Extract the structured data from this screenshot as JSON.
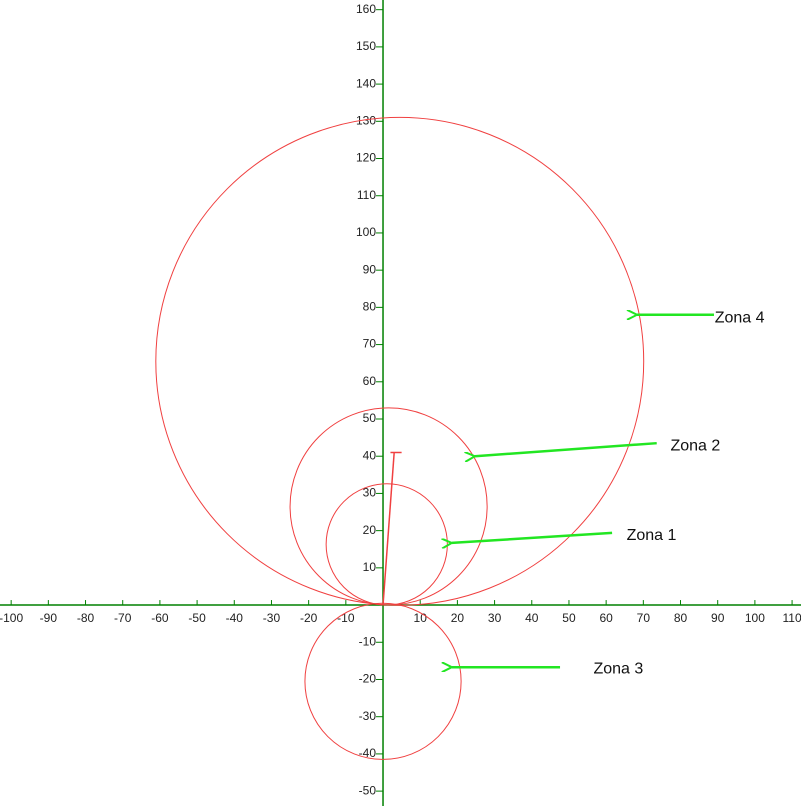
{
  "chart_data": {
    "type": "circle",
    "xlim": [
      -103,
      112.4
    ],
    "ylim": [
      -54,
      162.6
    ],
    "xticks": [
      -100,
      -90,
      -80,
      -70,
      -60,
      -50,
      -40,
      -30,
      -20,
      -10,
      10,
      20,
      30,
      40,
      50,
      60,
      70,
      80,
      90,
      100,
      110
    ],
    "yticks": [
      -50,
      -40,
      -30,
      -20,
      -10,
      10,
      20,
      30,
      40,
      50,
      60,
      70,
      80,
      90,
      100,
      110,
      120,
      130,
      140,
      150,
      160
    ],
    "axis_color": "#008000",
    "color": "#f04040",
    "arrow_color": "#22e622",
    "zones": [
      {
        "label": "Zona 1",
        "cx": 1,
        "cy": 16.3,
        "r": 16.3,
        "label_x": 65.5,
        "label_y": 18.6,
        "arrow_from": [
          61.6,
          19.4
        ],
        "arrow_to": [
          18.5,
          16.7
        ]
      },
      {
        "label": "Zona 2",
        "cx": 1.5,
        "cy": 26.5,
        "r": 26.5,
        "label_x": 77.3,
        "label_y": 42.7,
        "arrow_from": [
          73.6,
          43.5
        ],
        "arrow_to": [
          24.7,
          40
        ]
      },
      {
        "label": "Zona 3",
        "cx": 0,
        "cy": -20.5,
        "r": 21,
        "label_x": 56.6,
        "label_y": -17.2,
        "arrow_from": [
          47.6,
          -16.7
        ],
        "arrow_to": [
          18.5,
          -16.7
        ]
      },
      {
        "label": "Zona 4",
        "cx": 4.5,
        "cy": 65.5,
        "r": 65.6,
        "label_x": 89.2,
        "label_y": 77.1,
        "arrow_from": [
          89,
          78
        ],
        "arrow_to": [
          68.3,
          78
        ]
      }
    ],
    "line": {
      "x": [
        0,
        3
      ],
      "y": [
        0,
        41
      ],
      "cap": [
        2,
        5
      ]
    }
  }
}
